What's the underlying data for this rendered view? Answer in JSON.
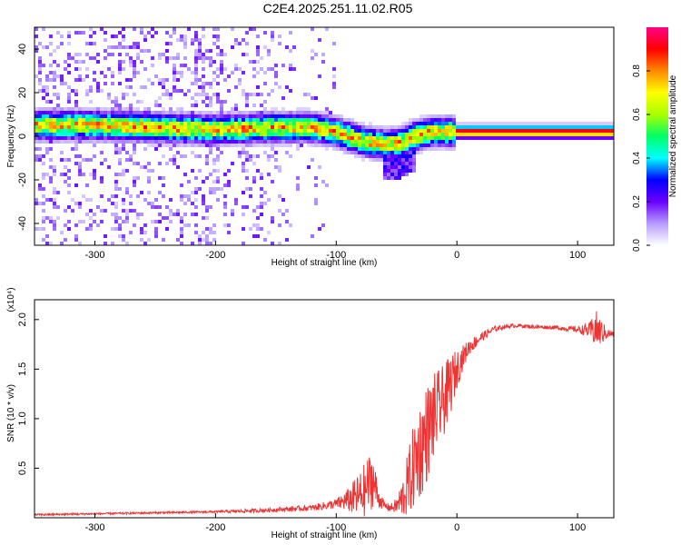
{
  "title": "C2E4.2025.251.11.02.R05",
  "chart_data": [
    {
      "type": "heatmap",
      "xlabel": "Height of straight line (km)",
      "ylabel": "Frequency (Hz)",
      "xlim": [
        -350,
        130
      ],
      "ylim": [
        -50,
        50
      ],
      "xticks": [
        -300,
        -200,
        -100,
        0,
        100
      ],
      "yticks": [
        -40,
        -20,
        0,
        20,
        40
      ],
      "colorbar": {
        "label": "Normalized spectral amplitude",
        "range": [
          0,
          1
        ],
        "ticks": [
          "0.0",
          "0.2",
          "0.4",
          "0.6",
          "0.8"
        ],
        "colors": [
          "#ffffff",
          "#b69bff",
          "#6a00ff",
          "#0000ff",
          "#00ffff",
          "#00ff66",
          "#aaff00",
          "#ffff00",
          "#ff8800",
          "#ff0000",
          "#ff0088"
        ]
      },
      "ridge": {
        "x": [
          -350,
          -300,
          -250,
          -200,
          -150,
          -120,
          -100,
          -80,
          -60,
          -45,
          -35,
          -20,
          0,
          50,
          100,
          130
        ],
        "freq": [
          5,
          5,
          4,
          3,
          4,
          4,
          2,
          -2,
          -4,
          -3,
          0,
          2,
          2,
          2,
          2,
          2
        ]
      }
    },
    {
      "type": "line",
      "xlabel": "Height of straight line (km)",
      "ylabel": "SNR (10 * v/v)",
      "y_multiplier": "(x10⁴)",
      "xlim": [
        -350,
        130
      ],
      "ylim": [
        0,
        2.2
      ],
      "xticks": [
        -300,
        -200,
        -100,
        0,
        100
      ],
      "yticks": [
        "0.5",
        "1.0",
        "1.5",
        "2.0"
      ],
      "color": "#ee3333",
      "series": [
        {
          "name": "SNR",
          "x": [
            -350,
            -300,
            -250,
            -200,
            -170,
            -150,
            -120,
            -100,
            -90,
            -80,
            -75,
            -70,
            -65,
            -60,
            -55,
            -50,
            -45,
            -40,
            -35,
            -30,
            -25,
            -20,
            -15,
            -10,
            -5,
            0,
            5,
            10,
            20,
            30,
            40,
            50,
            60,
            80,
            100,
            110,
            115,
            120,
            125,
            130
          ],
          "y": [
            0.03,
            0.04,
            0.05,
            0.06,
            0.07,
            0.08,
            0.1,
            0.14,
            0.18,
            0.22,
            0.3,
            0.4,
            0.2,
            0.12,
            0.1,
            0.12,
            0.2,
            0.35,
            0.55,
            0.7,
            0.85,
            1.0,
            1.1,
            1.2,
            1.35,
            1.5,
            1.62,
            1.72,
            1.82,
            1.9,
            1.93,
            1.94,
            1.93,
            1.92,
            1.9,
            1.89,
            1.9,
            1.87,
            1.86,
            1.85
          ],
          "noise": [
            0.01,
            0.01,
            0.01,
            0.01,
            0.02,
            0.02,
            0.03,
            0.05,
            0.12,
            0.25,
            0.3,
            0.3,
            0.1,
            0.04,
            0.04,
            0.08,
            0.2,
            0.35,
            0.45,
            0.5,
            0.5,
            0.45,
            0.4,
            0.35,
            0.3,
            0.2,
            0.12,
            0.08,
            0.05,
            0.03,
            0.02,
            0.02,
            0.02,
            0.02,
            0.03,
            0.08,
            0.2,
            0.12,
            0.05,
            0.03
          ]
        }
      ]
    }
  ]
}
